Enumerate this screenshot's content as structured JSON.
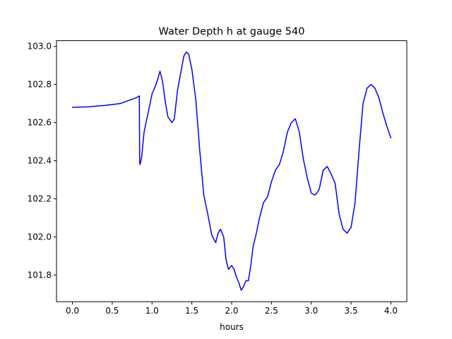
{
  "chart_data": {
    "type": "line",
    "title": "Water Depth h at gauge 540",
    "xlabel": "hours",
    "ylabel": "",
    "xlim": [
      -0.2,
      4.2
    ],
    "ylim": [
      101.66,
      103.03
    ],
    "xticks": [
      0.0,
      0.5,
      1.0,
      1.5,
      2.0,
      2.5,
      3.0,
      3.5,
      4.0
    ],
    "xtick_labels": [
      "0.0",
      "0.5",
      "1.0",
      "1.5",
      "2.0",
      "2.5",
      "3.0",
      "3.5",
      "4.0"
    ],
    "yticks": [
      101.8,
      102.0,
      102.2,
      102.4,
      102.6,
      102.8,
      103.0
    ],
    "ytick_labels": [
      "101.8",
      "102.0",
      "102.2",
      "102.4",
      "102.6",
      "102.8",
      "103.0"
    ],
    "grid": false,
    "series": [
      {
        "color": "#0000ff",
        "x": [
          0.0,
          0.2,
          0.4,
          0.6,
          0.7,
          0.8,
          0.84,
          0.845,
          0.85,
          0.87,
          0.9,
          0.95,
          1.0,
          1.05,
          1.08,
          1.1,
          1.13,
          1.17,
          1.2,
          1.25,
          1.28,
          1.32,
          1.36,
          1.4,
          1.43,
          1.46,
          1.5,
          1.55,
          1.6,
          1.65,
          1.7,
          1.75,
          1.8,
          1.83,
          1.86,
          1.9,
          1.93,
          1.96,
          2.0,
          2.03,
          2.06,
          2.09,
          2.12,
          2.15,
          2.18,
          2.21,
          2.24,
          2.27,
          2.3,
          2.35,
          2.4,
          2.45,
          2.5,
          2.55,
          2.6,
          2.65,
          2.7,
          2.75,
          2.8,
          2.85,
          2.9,
          2.95,
          3.0,
          3.05,
          3.1,
          3.15,
          3.2,
          3.25,
          3.3,
          3.35,
          3.4,
          3.45,
          3.5,
          3.55,
          3.6,
          3.65,
          3.7,
          3.75,
          3.8,
          3.85,
          3.9,
          3.95,
          4.0
        ],
        "y": [
          102.68,
          102.683,
          102.69,
          102.7,
          102.715,
          102.73,
          102.74,
          102.39,
          102.38,
          102.42,
          102.55,
          102.65,
          102.75,
          102.8,
          102.84,
          102.87,
          102.82,
          102.7,
          102.63,
          102.6,
          102.62,
          102.77,
          102.86,
          102.95,
          102.97,
          102.96,
          102.88,
          102.72,
          102.45,
          102.22,
          102.12,
          102.01,
          101.97,
          102.02,
          102.04,
          102.0,
          101.88,
          101.83,
          101.85,
          101.83,
          101.79,
          101.76,
          101.72,
          101.74,
          101.77,
          101.77,
          101.85,
          101.95,
          102.0,
          102.1,
          102.18,
          102.21,
          102.29,
          102.35,
          102.38,
          102.45,
          102.55,
          102.6,
          102.62,
          102.55,
          102.41,
          102.31,
          102.23,
          102.22,
          102.25,
          102.35,
          102.37,
          102.33,
          102.28,
          102.12,
          102.04,
          102.02,
          102.05,
          102.18,
          102.45,
          102.7,
          102.78,
          102.8,
          102.78,
          102.73,
          102.65,
          102.58,
          102.52
        ]
      }
    ]
  }
}
